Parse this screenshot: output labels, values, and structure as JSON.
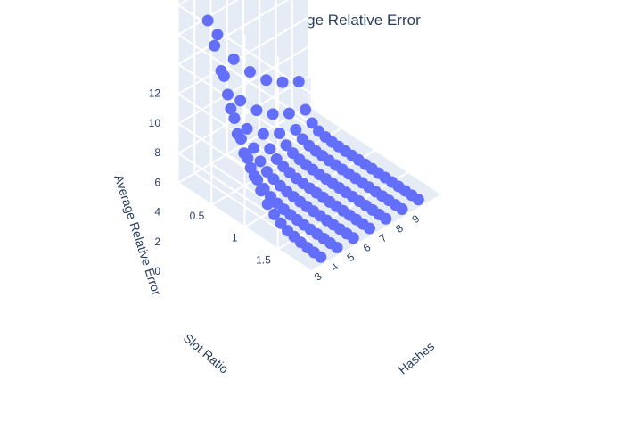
{
  "chart_data": {
    "type": "scatter3d",
    "title": "german - Average Relative Error",
    "axes": {
      "x": {
        "label": "Hashes",
        "range": [
          2,
          10
        ],
        "ticks": [
          "3",
          "4",
          "5",
          "6",
          "7",
          "8",
          "9"
        ]
      },
      "y": {
        "label": "Slot Ratio",
        "range": [
          0,
          2
        ],
        "ticks": [
          "0.5",
          "1",
          "1.5"
        ]
      },
      "z": {
        "label": "Average Relative Error",
        "range": [
          0,
          13
        ],
        "ticks": [
          "0",
          "2",
          "4",
          "6",
          "8",
          "10",
          "12"
        ]
      }
    },
    "grid": true,
    "marker_color": "#636efa",
    "hashes": [
      3,
      4,
      5,
      6,
      7,
      8,
      9
    ],
    "slot_ratios": [
      0.1,
      0.2,
      0.3,
      0.4,
      0.5,
      0.6,
      0.7,
      0.8,
      0.9,
      1.0,
      1.1,
      1.2,
      1.3,
      1.4,
      1.5,
      1.6,
      1.7,
      1.8,
      1.9
    ],
    "error_by_hashes": [
      [
        12.4,
        10.9,
        9.5,
        8.1,
        6.8,
        5.5,
        4.4,
        3.4,
        2.5,
        1.8,
        1.2,
        0.8,
        0.5,
        0.3,
        0.2,
        0.1,
        0.05,
        0.02,
        0.0
      ],
      [
        9.0,
        6.5,
        4.6,
        3.2,
        2.2,
        1.5,
        1.0,
        0.7,
        0.45,
        0.3,
        0.2,
        0.13,
        0.08,
        0.05,
        0.03,
        0.02,
        0.01,
        0.0,
        0.0
      ],
      [
        6.7,
        4.2,
        2.6,
        1.6,
        1.0,
        0.6,
        0.4,
        0.25,
        0.15,
        0.1,
        0.06,
        0.04,
        0.02,
        0.01,
        0.0,
        0.0,
        0.0,
        0.0,
        0.0
      ],
      [
        5.2,
        2.9,
        1.6,
        0.9,
        0.5,
        0.3,
        0.18,
        0.1,
        0.06,
        0.03,
        0.02,
        0.01,
        0.0,
        0.0,
        0.0,
        0.0,
        0.0,
        0.0,
        0.0
      ],
      [
        4.0,
        2.0,
        1.0,
        0.5,
        0.26,
        0.13,
        0.07,
        0.04,
        0.02,
        0.01,
        0.0,
        0.0,
        0.0,
        0.0,
        0.0,
        0.0,
        0.0,
        0.0,
        0.0
      ],
      [
        3.2,
        1.4,
        0.6,
        0.27,
        0.12,
        0.06,
        0.03,
        0.01,
        0.0,
        0.0,
        0.0,
        0.0,
        0.0,
        0.0,
        0.0,
        0.0,
        0.0,
        0.0,
        0.0
      ],
      [
        2.6,
        1.0,
        0.4,
        0.15,
        0.06,
        0.02,
        0.01,
        0.0,
        0.0,
        0.0,
        0.0,
        0.0,
        0.0,
        0.0,
        0.0,
        0.0,
        0.0,
        0.0,
        0.0
      ]
    ]
  }
}
